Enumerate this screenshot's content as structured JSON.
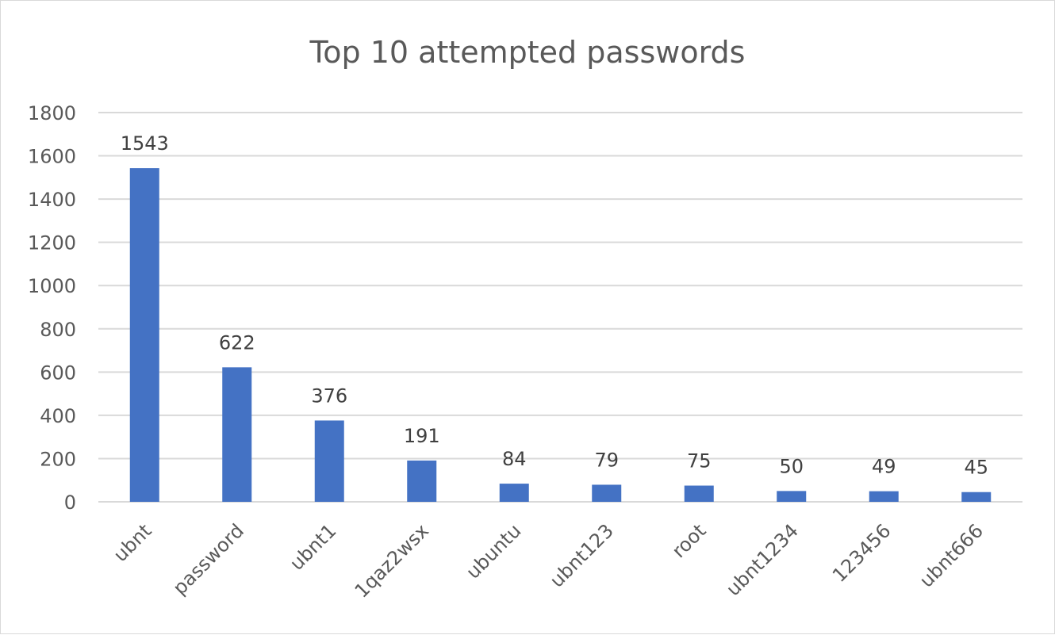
{
  "chart_data": {
    "type": "bar",
    "title": "Top 10 attempted passwords",
    "xlabel": "",
    "ylabel": "",
    "categories": [
      "ubnt",
      "password",
      "ubnt1",
      "1qaz2wsx",
      "ubuntu",
      "ubnt123",
      "root",
      "ubnt1234",
      "123456",
      "ubnt666"
    ],
    "values": [
      1543,
      622,
      376,
      191,
      84,
      79,
      75,
      50,
      49,
      45
    ],
    "ylim": [
      0,
      1800
    ],
    "yticks": [
      0,
      200,
      400,
      600,
      800,
      1000,
      1200,
      1400,
      1600,
      1800
    ],
    "grid": true,
    "legend": "none",
    "data_labels": true,
    "bar_color": "#4472C4",
    "grid_color": "#d9d9d9",
    "category_label_rotation": "-45deg"
  }
}
